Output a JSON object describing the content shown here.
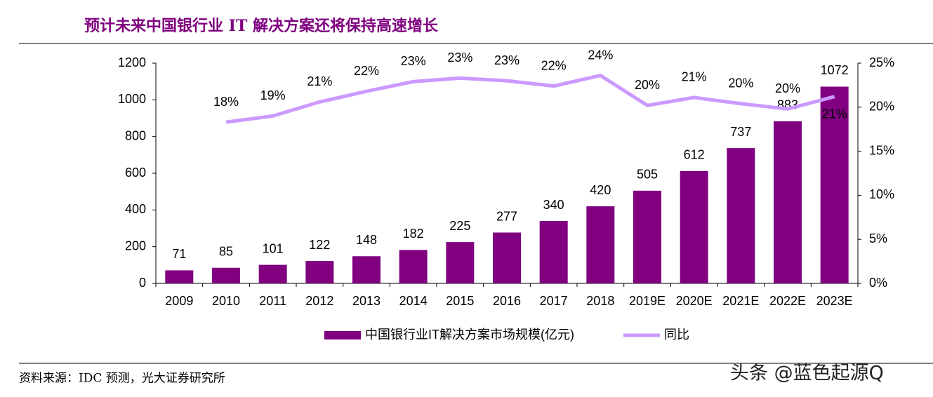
{
  "chart_data": {
    "type": "bar",
    "title": "预计未来中国银行业 IT 解决方案还将保持高速增长",
    "categories": [
      "2009",
      "2010",
      "2011",
      "2012",
      "2013",
      "2014",
      "2015",
      "2016",
      "2017",
      "2018",
      "2019E",
      "2020E",
      "2021E",
      "2022E",
      "2023E"
    ],
    "series": [
      {
        "name": "中国银行业IT解决方案市场规模(亿元)",
        "type": "bar",
        "color": "#800080",
        "values": [
          71,
          85,
          101,
          122,
          148,
          182,
          225,
          277,
          340,
          420,
          505,
          612,
          737,
          883,
          1072
        ]
      },
      {
        "name": "同比",
        "type": "line",
        "axis": "y2",
        "color": "#cc99ff",
        "values": [
          null,
          18.3,
          19.0,
          20.6,
          21.8,
          22.9,
          23.3,
          23.0,
          22.4,
          23.6,
          20.2,
          21.1,
          20.4,
          19.8,
          21.2
        ],
        "value_labels": [
          null,
          "18%",
          "19%",
          "21%",
          "22%",
          "23%",
          "23%",
          "23%",
          "22%",
          "24%",
          "20%",
          "21%",
          "20%",
          "20%",
          "21%"
        ]
      }
    ],
    "ylim": [
      0,
      1200
    ],
    "yticks": [
      0,
      200,
      400,
      600,
      800,
      1000,
      1200
    ],
    "y2lim": [
      0,
      25
    ],
    "y2ticks": [
      {
        "value": 0,
        "label": "0%"
      },
      {
        "value": 5,
        "label": "5%"
      },
      {
        "value": 10,
        "label": "10%"
      },
      {
        "value": 15,
        "label": "15%"
      },
      {
        "value": 20,
        "label": "20%"
      },
      {
        "value": 25,
        "label": "25%"
      }
    ],
    "legend": "bottom"
  },
  "source": "资料来源：IDC 预测，光大证券研究所",
  "watermark": "头条 @蓝色起源Q"
}
